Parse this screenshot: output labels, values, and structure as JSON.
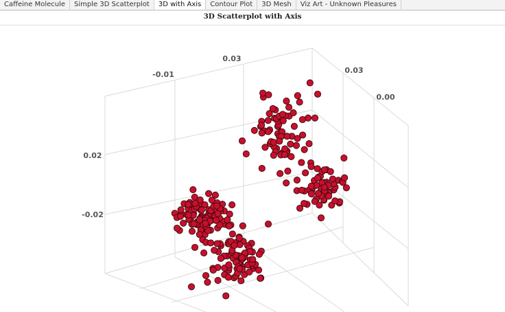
{
  "tabs": [
    {
      "label": "Caffeine Molecule",
      "active": false
    },
    {
      "label": "Simple 3D Scatterplot",
      "active": false
    },
    {
      "label": "3D with Axis",
      "active": true
    },
    {
      "label": "Contour Plot",
      "active": false
    },
    {
      "label": "3D Mesh",
      "active": false
    },
    {
      "label": "Viz Art - Unknown Pleasures",
      "active": false
    }
  ],
  "chart_data": {
    "type": "scatter",
    "title": "3D Scatterplot with Axis",
    "grid": true,
    "marker_color": "#c8102e",
    "marker_edge_color": "#3a0a0a",
    "tick_labels": {
      "x_axis": [
        "-0.01",
        "0.03"
      ],
      "y_axis": [
        "0.03",
        "0.00"
      ],
      "z_axis": [
        "0.02",
        "-0.02"
      ]
    },
    "clusters": [
      {
        "center_x": -0.01,
        "center_y": 0.015,
        "center_z": -0.015,
        "count": 95
      },
      {
        "center_x": 0.02,
        "center_y": 0.005,
        "center_z": -0.03,
        "count": 85
      },
      {
        "center_x": 0.025,
        "center_y": 0.03,
        "center_z": 0.02,
        "count": 75
      },
      {
        "center_x": 0.035,
        "center_y": -0.005,
        "center_z": 0.0,
        "count": 60
      }
    ]
  }
}
